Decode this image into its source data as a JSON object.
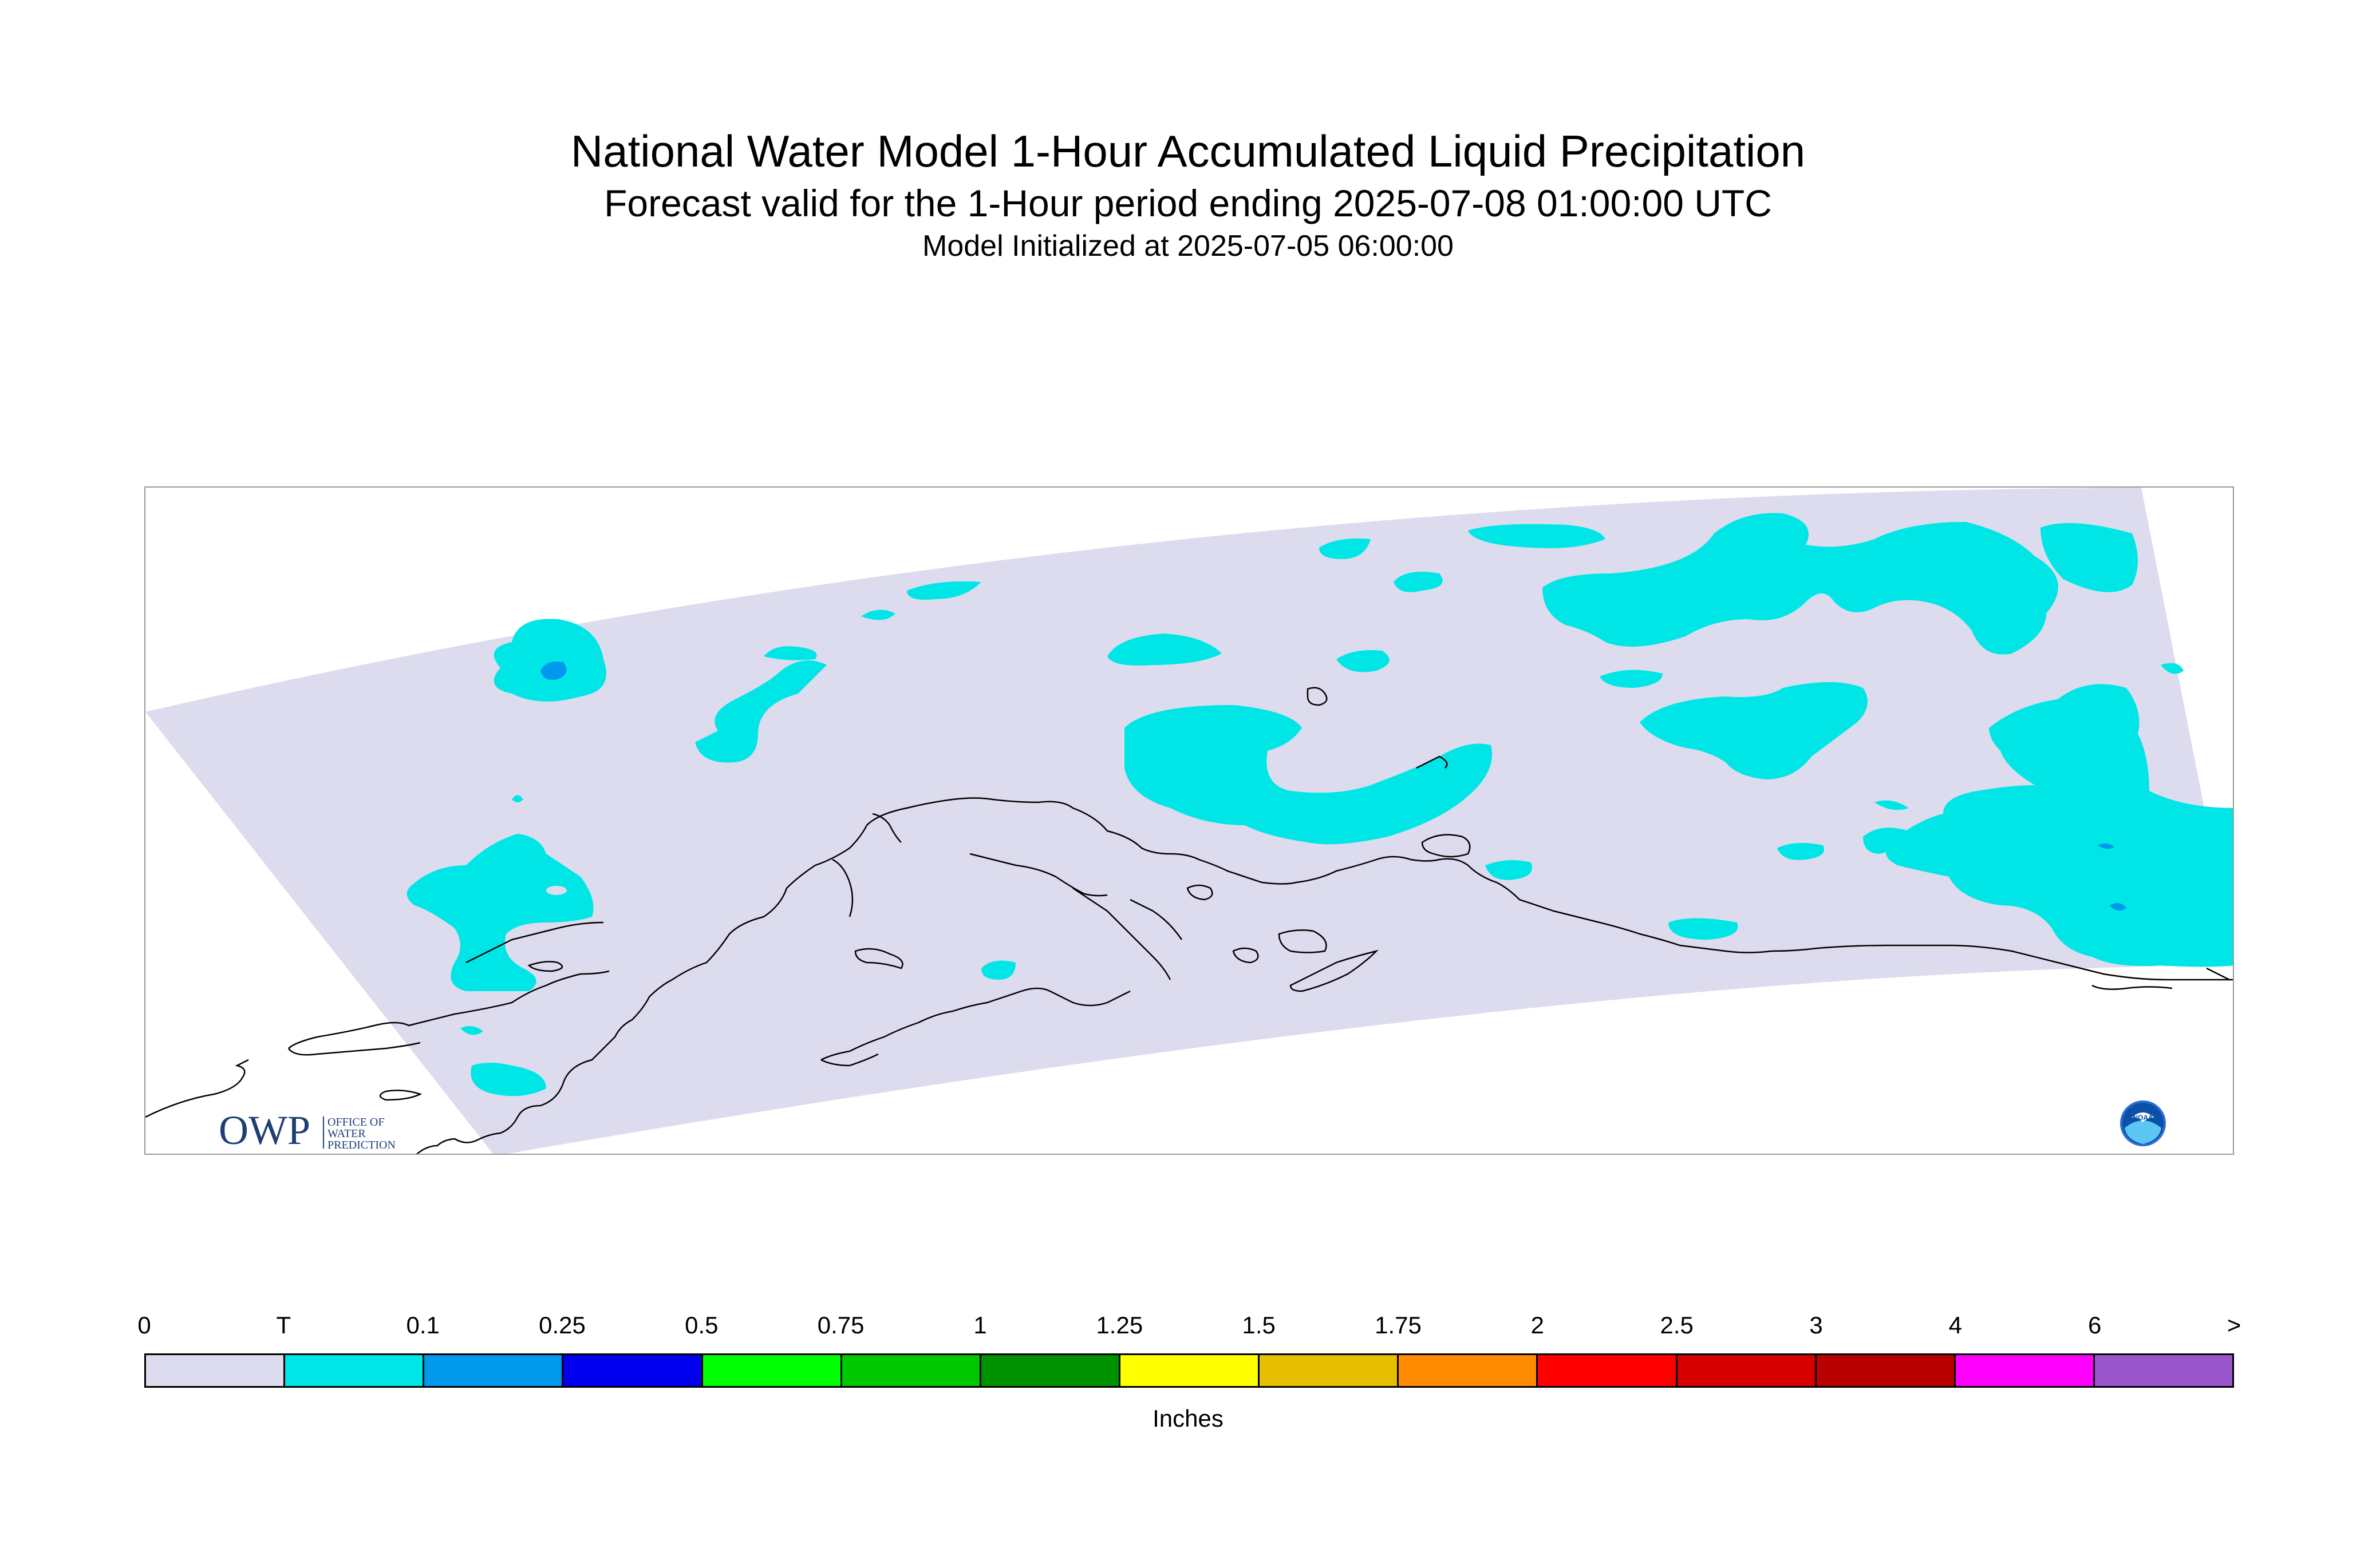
{
  "header": {
    "title": "National Water Model 1-Hour Accumulated Liquid Precipitation",
    "subtitle": "Forecast valid for the 1-Hour period ending 2025-07-08 01:00:00 UTC",
    "init": "Model Initialized at 2025-07-05 06:00:00"
  },
  "map": {
    "region_fill_color": "#dcdcee",
    "coastline_color": "#000000",
    "precip_trace_color": "#00e6e6",
    "precip_light_color": "#0099ee"
  },
  "logos": {
    "owp": {
      "mark": "OWP",
      "line1": "OFFICE OF",
      "line2": "WATER",
      "line3": "PREDICTION"
    },
    "noaa": {
      "mark": "NOAA"
    }
  },
  "legend": {
    "labels": [
      "0",
      "T",
      "0.1",
      "0.25",
      "0.5",
      "0.75",
      "1",
      "1.25",
      "1.5",
      "1.75",
      "2",
      "2.5",
      "3",
      "4",
      "6",
      ">"
    ],
    "colors": [
      "#dcdcee",
      "#00e6e6",
      "#0099ee",
      "#0000ee",
      "#00ff00",
      "#00c800",
      "#009100",
      "#ffff00",
      "#e6c000",
      "#ff8c00",
      "#ff0000",
      "#d70000",
      "#b90000",
      "#ff00ff",
      "#9955cc"
    ],
    "units": "Inches"
  }
}
